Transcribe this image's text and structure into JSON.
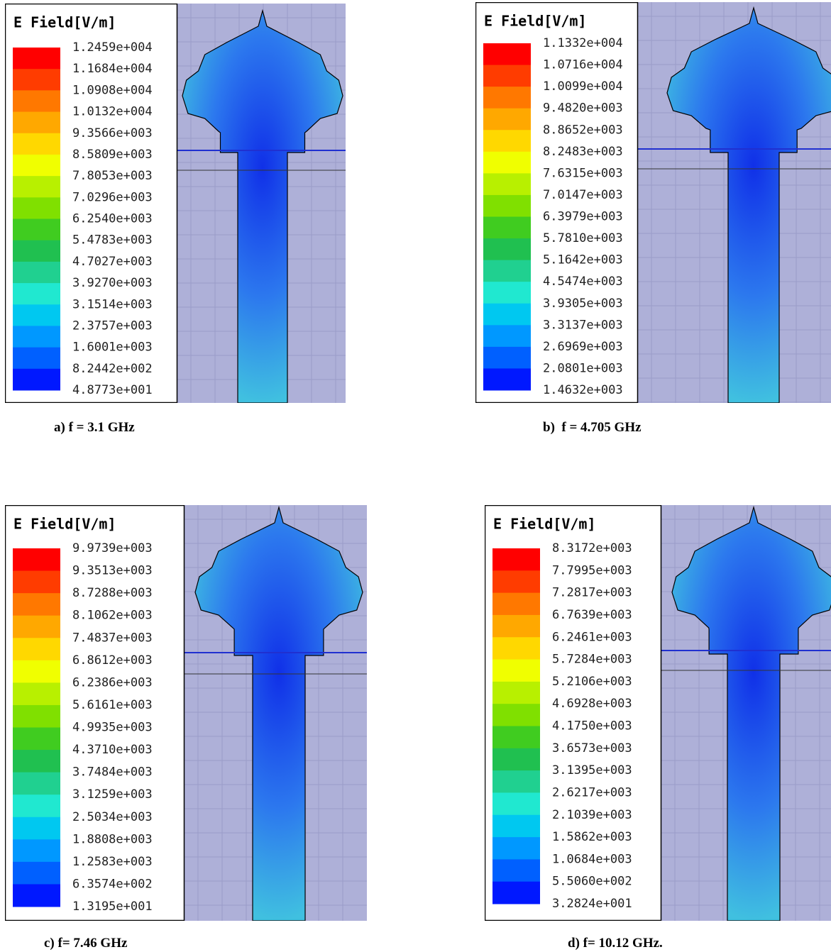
{
  "panels": [
    {
      "legend_title": "E Field[V/m]",
      "legend_labels": [
        "1.2459e+004",
        "1.1684e+004",
        "1.0908e+004",
        "1.0132e+004",
        "9.3566e+003",
        "8.5809e+003",
        "7.8053e+003",
        "7.0296e+003",
        "6.2540e+003",
        "5.4783e+003",
        "4.7027e+003",
        "3.9270e+003",
        "3.1514e+003",
        "2.3757e+003",
        "1.6001e+003",
        "8.2442e+002",
        "4.8773e+001"
      ],
      "caption": "a) f = 3.1 GHz"
    },
    {
      "legend_title": "E Field[V/m]",
      "legend_labels": [
        "1.1332e+004",
        "1.0716e+004",
        "1.0099e+004",
        "9.4820e+003",
        "8.8652e+003",
        "8.2483e+003",
        "7.6315e+003",
        "7.0147e+003",
        "6.3979e+003",
        "5.7810e+003",
        "5.1642e+003",
        "4.5474e+003",
        "3.9305e+003",
        "3.3137e+003",
        "2.6969e+003",
        "2.0801e+003",
        "1.4632e+003"
      ],
      "caption": "b)  f = 4.705 GHz"
    },
    {
      "legend_title": "E Field[V/m]",
      "legend_labels": [
        "9.9739e+003",
        "9.3513e+003",
        "8.7288e+003",
        "8.1062e+003",
        "7.4837e+003",
        "6.8612e+003",
        "6.2386e+003",
        "5.6161e+003",
        "4.9935e+003",
        "4.3710e+003",
        "3.7484e+003",
        "3.1259e+003",
        "2.5034e+003",
        "1.8808e+003",
        "1.2583e+003",
        "6.3574e+002",
        "1.3195e+001"
      ],
      "caption": "c) f= 7.46 GHz"
    },
    {
      "legend_title": "E Field[V/m]",
      "legend_labels": [
        "8.3172e+003",
        "7.7995e+003",
        "7.2817e+003",
        "6.7639e+003",
        "6.2461e+003",
        "5.7284e+003",
        "5.2106e+003",
        "4.6928e+003",
        "4.1750e+003",
        "3.6573e+003",
        "3.1395e+003",
        "2.6217e+003",
        "2.1039e+003",
        "1.5862e+003",
        "1.0684e+003",
        "5.5060e+002",
        "3.2824e+001"
      ],
      "caption": "d) f= 10.12 GHz."
    }
  ]
}
